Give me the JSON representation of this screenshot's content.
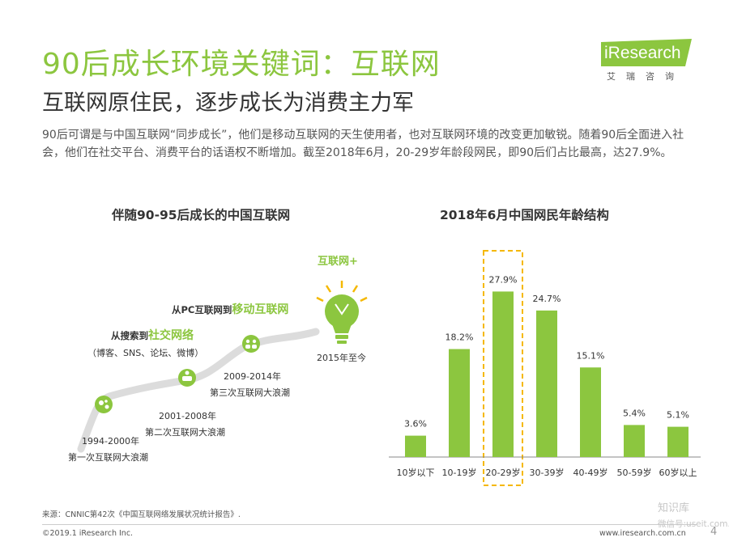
{
  "header": {
    "title": "90后成长环境关键词：互联网",
    "subtitle": "互联网原住民，逐步成长为消费主力军"
  },
  "logo": {
    "text": "iResearch",
    "cn": "艾瑞咨询"
  },
  "intro": "90后可谓是与中国互联网“同步成长”，他们是移动互联网的天生使用者，也对互联网环境的改变更加敏锐。随着90后全面进入社会，他们在社交平台、消费平台的话语权不断增加。截至2018年6月，20-29岁年龄段网民，即90后们占比最高，达27.9%。",
  "timeline": {
    "heading": "伴随90-95后成长的中国互联网",
    "stages": [
      {
        "years": "1994-2000年",
        "label": "第一次互联网大浪潮"
      },
      {
        "years": "2001-2008年",
        "label": "第二次互联网大浪潮"
      },
      {
        "years": "2009-2014年",
        "label": "第三次互联网大浪潮"
      },
      {
        "years": "2015年至今",
        "label": ""
      }
    ],
    "milestone1_prefix": "从搜索到",
    "milestone1_accent": "社交网络",
    "milestone1_sub": "（博客、SNS、论坛、微博）",
    "milestone2_prefix": "从PC互联网到",
    "milestone2_accent": "移动互联网",
    "milestone3": "互联网+"
  },
  "chart_data": {
    "type": "bar",
    "title": "2018年6月中国网民年龄结构",
    "categories": [
      "10岁以下",
      "10-19岁",
      "20-29岁",
      "30-39岁",
      "40-49岁",
      "50-59岁",
      "60岁以上"
    ],
    "values": [
      3.6,
      18.2,
      27.9,
      24.7,
      15.1,
      5.4,
      5.1
    ],
    "value_labels": [
      "3.6%",
      "18.2%",
      "27.9%",
      "24.7%",
      "15.1%",
      "5.4%",
      "5.1%"
    ],
    "highlight_index": 2,
    "bar_color": "#8cc63f",
    "highlight_box_color": "#f5b800",
    "ylim": [
      0,
      30
    ]
  },
  "footer": {
    "source": "来源：CNNIC第42次《中国互联网络发展状况统计报告》.",
    "copyright": "©2019.1 iResearch Inc.",
    "site": "www.iresearch.com.cn",
    "page": "4",
    "watermark": "知识库",
    "watermark2": "微信号:useit.com.cn"
  },
  "colors": {
    "accent": "#8cc63f",
    "highlight": "#f5b800",
    "text": "#333333"
  }
}
